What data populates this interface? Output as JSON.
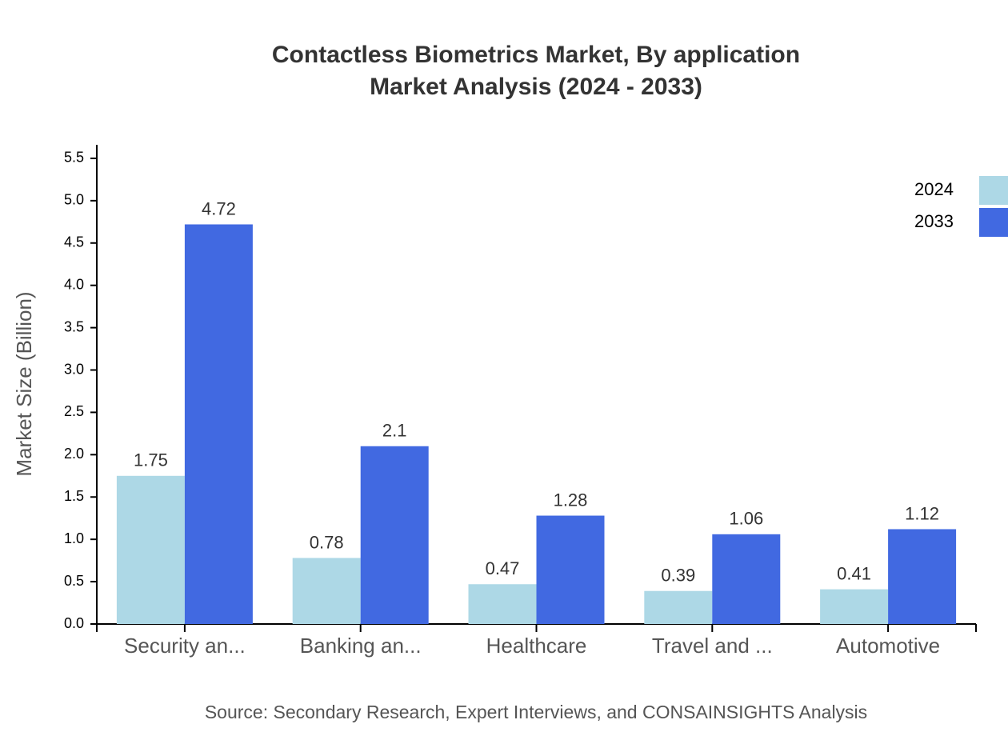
{
  "chart_data": {
    "type": "bar",
    "title": "Contactless Biometrics Market, By application",
    "subtitle": "Market Analysis (2024 - 2033)",
    "y_label": "Market Size (Billion)",
    "source": "Source: Secondary Research, Expert Interviews, and CONSAINSIGHTS Analysis",
    "categories": [
      "Security an...",
      "Banking an...",
      "Healthcare",
      "Travel and ...",
      "Automotive"
    ],
    "series": [
      {
        "name": "2024",
        "color": "#add8e6",
        "values": [
          1.75,
          0.78,
          0.47,
          0.39,
          0.41
        ]
      },
      {
        "name": "2033",
        "color": "#4169e1",
        "values": [
          4.72,
          2.1,
          1.28,
          1.06,
          1.12
        ]
      }
    ],
    "ylim": [
      0,
      5.66
    ],
    "yticks": [
      {
        "value": 0,
        "label": "0.0"
      },
      0.5,
      {
        "value": 1,
        "label": "1.0"
      },
      1.5,
      {
        "value": 2,
        "label": "2.0"
      },
      2.5,
      {
        "value": 3,
        "label": "3.0"
      },
      3.5,
      {
        "value": 4,
        "label": "4.0"
      },
      4.5,
      {
        "value": 5,
        "label": "5.0"
      },
      5.5
    ],
    "legend": "top-right"
  }
}
